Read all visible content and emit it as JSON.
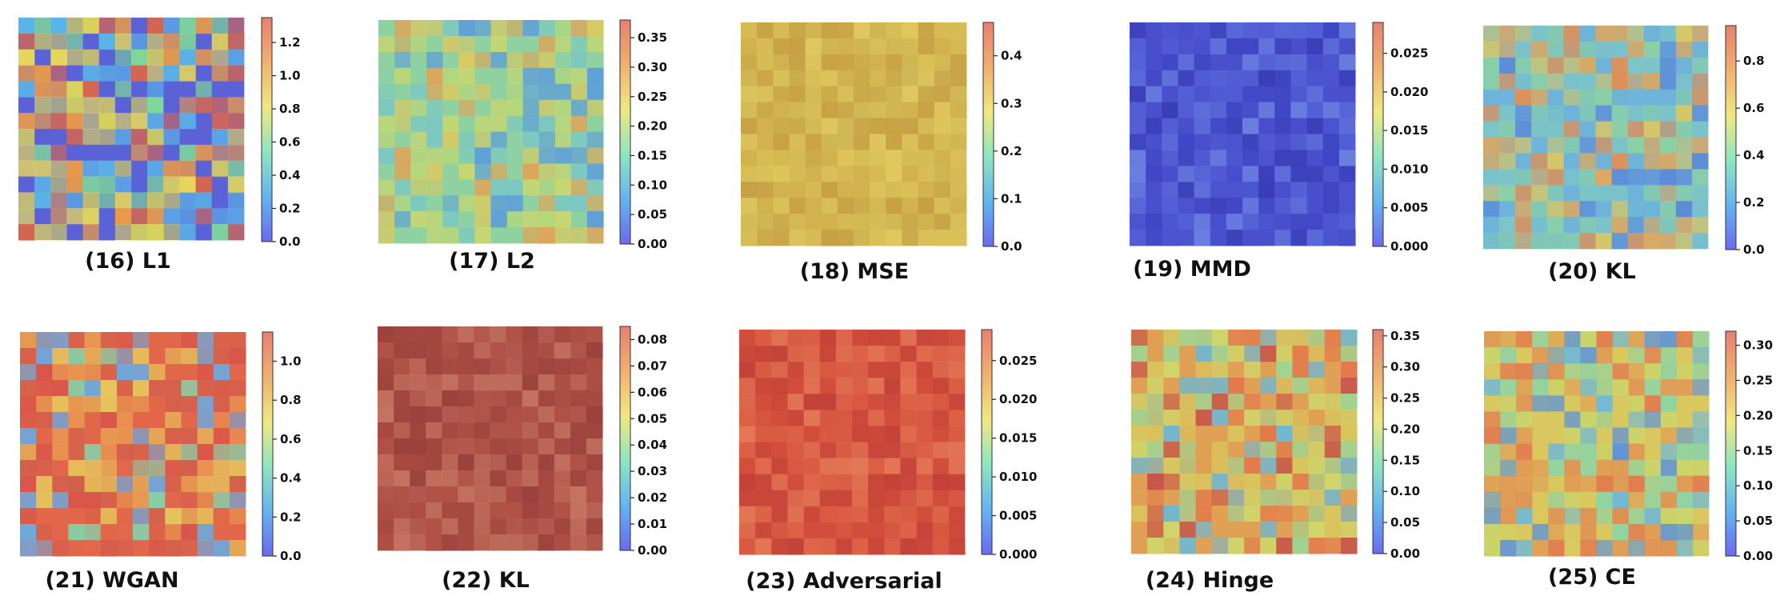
{
  "chart_data": [
    {
      "type": "heatmap",
      "caption": "(16) L1",
      "title": "",
      "colorbar": {
        "range": [
          0,
          1.35
        ],
        "ticks": [
          "0.0",
          "0.2",
          "0.4",
          "0.6",
          "0.8",
          "1.0",
          "1.2"
        ],
        "tick_values": [
          0,
          0.2,
          0.4,
          0.6,
          0.8,
          1.0,
          1.2
        ]
      },
      "palette": [
        "#5b62d6",
        "#5bb6e8",
        "#7fd79a",
        "#d9d45a",
        "#e89a4a",
        "#d9664c",
        "#e8d95a"
      ]
    },
    {
      "type": "heatmap",
      "caption": "(17) L2",
      "title": "",
      "colorbar": {
        "range": [
          0,
          0.38
        ],
        "ticks": [
          "0.00",
          "0.05",
          "0.10",
          "0.15",
          "0.20",
          "0.25",
          "0.30",
          "0.35"
        ],
        "tick_values": [
          0,
          0.05,
          0.1,
          0.15,
          0.2,
          0.25,
          0.3,
          0.35
        ]
      },
      "palette": [
        "#8fd1a0",
        "#b9d778",
        "#d8c963",
        "#7cc8c2",
        "#e0a457",
        "#5f9fd8",
        "#c8d670"
      ]
    },
    {
      "type": "heatmap",
      "caption": "(18) MSE",
      "title": "",
      "colorbar": {
        "range": [
          0,
          0.47
        ],
        "ticks": [
          "0.0",
          "0.1",
          "0.2",
          "0.3",
          "0.4"
        ],
        "tick_values": [
          0,
          0.1,
          0.2,
          0.3,
          0.4
        ]
      },
      "palette": [
        "#d1b24f",
        "#c9a84a",
        "#d9c35a",
        "#cfb956",
        "#e0c85e",
        "#c7a045",
        "#d6bd55"
      ]
    },
    {
      "type": "heatmap",
      "caption": "(19) MMD",
      "title": "",
      "colorbar": {
        "range": [
          0,
          0.029
        ],
        "ticks": [
          "0.000",
          "0.005",
          "0.010",
          "0.015",
          "0.020",
          "0.025"
        ],
        "tick_values": [
          0,
          0.005,
          0.01,
          0.015,
          0.02,
          0.025
        ]
      },
      "palette": [
        "#4a4fcc",
        "#3f46c4",
        "#5561d8",
        "#4c56cf",
        "#6a80e0",
        "#3a3fb8",
        "#5a6ad8"
      ]
    },
    {
      "type": "heatmap",
      "caption": "(20) KL",
      "title": "",
      "colorbar": {
        "range": [
          0,
          0.95
        ],
        "ticks": [
          "0.0",
          "0.2",
          "0.4",
          "0.6",
          "0.8"
        ],
        "tick_values": [
          0,
          0.2,
          0.4,
          0.6,
          0.8
        ]
      },
      "palette": [
        "#6fb4d8",
        "#e2a859",
        "#8dd2a2",
        "#d7c865",
        "#5d8cd8",
        "#e38f52",
        "#7ec6c6"
      ]
    },
    {
      "type": "heatmap",
      "caption": "(21) WGAN",
      "title": "",
      "colorbar": {
        "range": [
          0,
          1.15
        ],
        "ticks": [
          "0.0",
          "0.2",
          "0.4",
          "0.6",
          "0.8",
          "1.0"
        ],
        "tick_values": [
          0,
          0.2,
          0.4,
          0.6,
          0.8,
          1.0
        ]
      },
      "palette": [
        "#e2674a",
        "#d9554a",
        "#e89a52",
        "#6ea8dc",
        "#e6c35c",
        "#d4604c",
        "#87cfa6"
      ]
    },
    {
      "type": "heatmap",
      "caption": "(22) KL",
      "title": "",
      "colorbar": {
        "range": [
          0,
          0.085
        ],
        "ticks": [
          "0.00",
          "0.01",
          "0.02",
          "0.03",
          "0.04",
          "0.05",
          "0.06",
          "0.07",
          "0.08"
        ],
        "tick_values": [
          0,
          0.01,
          0.02,
          0.03,
          0.04,
          0.05,
          0.06,
          0.07,
          0.08
        ]
      },
      "palette": [
        "#a74a42",
        "#9c423d",
        "#b55a50",
        "#c57361",
        "#a0463f",
        "#c0705e",
        "#b15247"
      ]
    },
    {
      "type": "heatmap",
      "caption": "(23) Adversarial",
      "title": "",
      "colorbar": {
        "range": [
          0,
          0.029
        ],
        "ticks": [
          "0.000",
          "0.005",
          "0.010",
          "0.015",
          "0.020",
          "0.025"
        ],
        "tick_values": [
          0,
          0.005,
          0.01,
          0.015,
          0.02,
          0.025
        ]
      },
      "palette": [
        "#d24e3c",
        "#c8473a",
        "#e06a4c",
        "#d95c42",
        "#e27856",
        "#c2413a",
        "#dd6447"
      ]
    },
    {
      "type": "heatmap",
      "caption": "(24) Hinge",
      "title": "",
      "colorbar": {
        "range": [
          0,
          0.36
        ],
        "ticks": [
          "0.00",
          "0.05",
          "0.10",
          "0.15",
          "0.20",
          "0.25",
          "0.30",
          "0.35"
        ],
        "tick_values": [
          0,
          0.05,
          0.1,
          0.15,
          0.2,
          0.25,
          0.3,
          0.35
        ]
      },
      "palette": [
        "#e0a055",
        "#d9c65e",
        "#9fd492",
        "#e3794c",
        "#6fb8d2",
        "#cfd66b",
        "#c7574a"
      ]
    },
    {
      "type": "heatmap",
      "caption": "(25) CE",
      "title": "",
      "colorbar": {
        "range": [
          0,
          0.32
        ],
        "ticks": [
          "0.00",
          "0.05",
          "0.10",
          "0.15",
          "0.20",
          "0.25",
          "0.30"
        ],
        "tick_values": [
          0,
          0.05,
          0.1,
          0.15,
          0.2,
          0.25,
          0.3
        ]
      },
      "palette": [
        "#d9c85f",
        "#8fd3a3",
        "#e09c55",
        "#70b9d6",
        "#c9d56c",
        "#e27d50",
        "#5f94d8"
      ]
    }
  ],
  "colors": {
    "colormap": [
      "#6a6af0",
      "#64b4f0",
      "#8ee6c0",
      "#f0e880",
      "#f0b070",
      "#e88070"
    ]
  }
}
